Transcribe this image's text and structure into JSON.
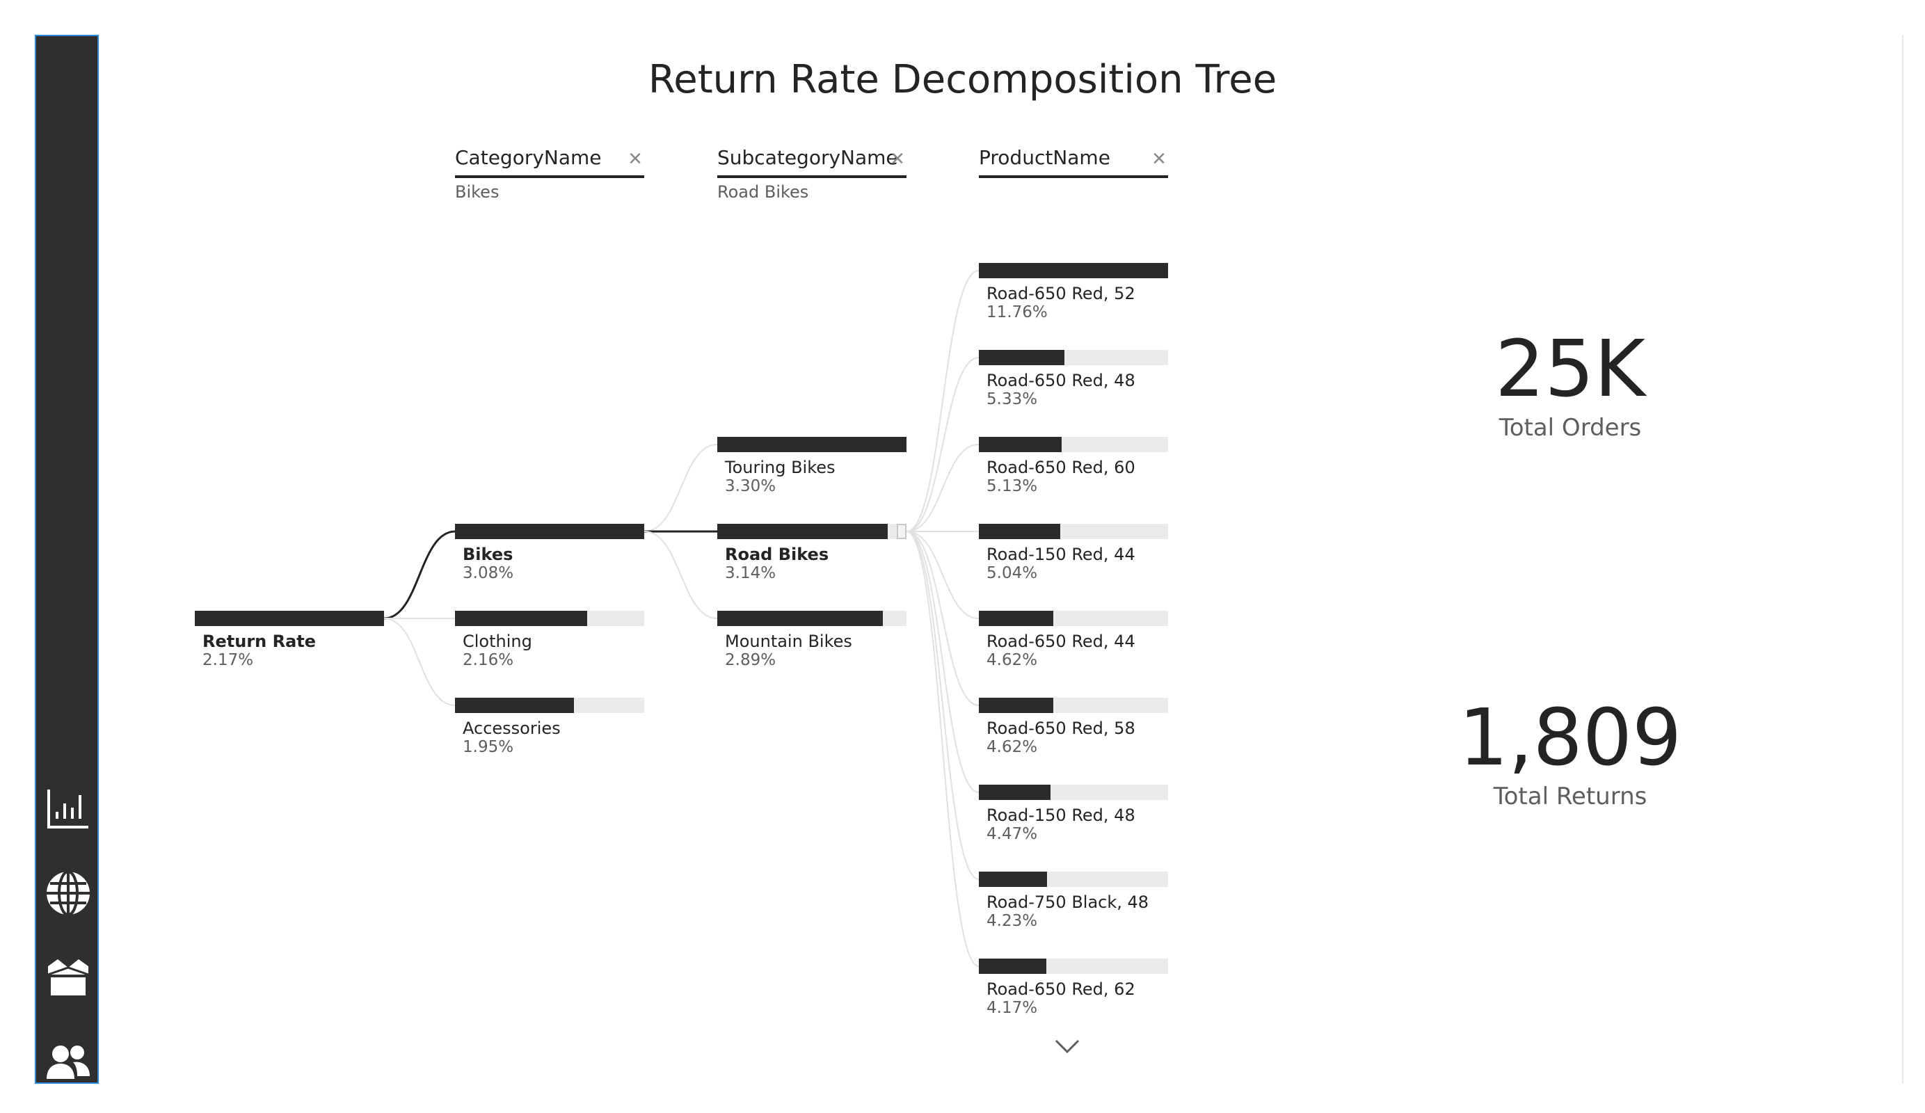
{
  "title": "Return Rate Decomposition Tree",
  "sidebar": {
    "items": [
      {
        "name": "nav-overview-button",
        "icon": "bar-chart-icon"
      },
      {
        "name": "nav-map-button",
        "icon": "globe-icon"
      },
      {
        "name": "nav-products-button",
        "icon": "box-icon"
      },
      {
        "name": "nav-customers-button",
        "icon": "users-icon"
      }
    ]
  },
  "tree": {
    "levels": [
      {
        "field": "CategoryName",
        "selected": "Bikes",
        "close_icon": "close-icon"
      },
      {
        "field": "SubcategoryName",
        "selected": "Road Bikes",
        "close_icon": "close-icon"
      },
      {
        "field": "ProductName",
        "selected": "",
        "close_icon": "close-icon"
      }
    ],
    "root": {
      "label": "Return Rate",
      "value": "2.17%",
      "fraction": 1.0
    },
    "categories": [
      {
        "label": "Bikes",
        "value": "3.08%",
        "fraction": 1.0,
        "selected": true
      },
      {
        "label": "Clothing",
        "value": "2.16%",
        "fraction": 0.7,
        "selected": false
      },
      {
        "label": "Accessories",
        "value": "1.95%",
        "fraction": 0.63,
        "selected": false
      }
    ],
    "subcategories": [
      {
        "label": "Touring Bikes",
        "value": "3.30%",
        "fraction": 1.0,
        "selected": false
      },
      {
        "label": "Road Bikes",
        "value": "3.14%",
        "fraction": 0.95,
        "selected": true
      },
      {
        "label": "Mountain Bikes",
        "value": "2.89%",
        "fraction": 0.876,
        "selected": false
      }
    ],
    "products": [
      {
        "label": "Road-650 Red, 52",
        "value": "11.76%",
        "fraction": 1.0
      },
      {
        "label": "Road-650 Red, 48",
        "value": "5.33%",
        "fraction": 0.453
      },
      {
        "label": "Road-650 Red, 60",
        "value": "5.13%",
        "fraction": 0.436
      },
      {
        "label": "Road-150 Red, 44",
        "value": "5.04%",
        "fraction": 0.429
      },
      {
        "label": "Road-650 Red, 44",
        "value": "4.62%",
        "fraction": 0.393
      },
      {
        "label": "Road-650 Red, 58",
        "value": "4.62%",
        "fraction": 0.393
      },
      {
        "label": "Road-150 Red, 48",
        "value": "4.47%",
        "fraction": 0.38
      },
      {
        "label": "Road-750 Black, 48",
        "value": "4.23%",
        "fraction": 0.36
      },
      {
        "label": "Road-650 Red, 62",
        "value": "4.17%",
        "fraction": 0.355
      }
    ],
    "more_icon": "chevron-down-icon"
  },
  "kpis": [
    {
      "value": "25K",
      "label": "Total Orders"
    },
    {
      "value": "1,809",
      "label": "Total Returns"
    }
  ],
  "colors": {
    "bar": "#2b2b2b",
    "track": "#ebebeb",
    "sidebar": "#2f2f2f",
    "sidebar_border": "#2b88d8",
    "link_active": "#252423",
    "link_inactive": "#e1e1e1"
  }
}
